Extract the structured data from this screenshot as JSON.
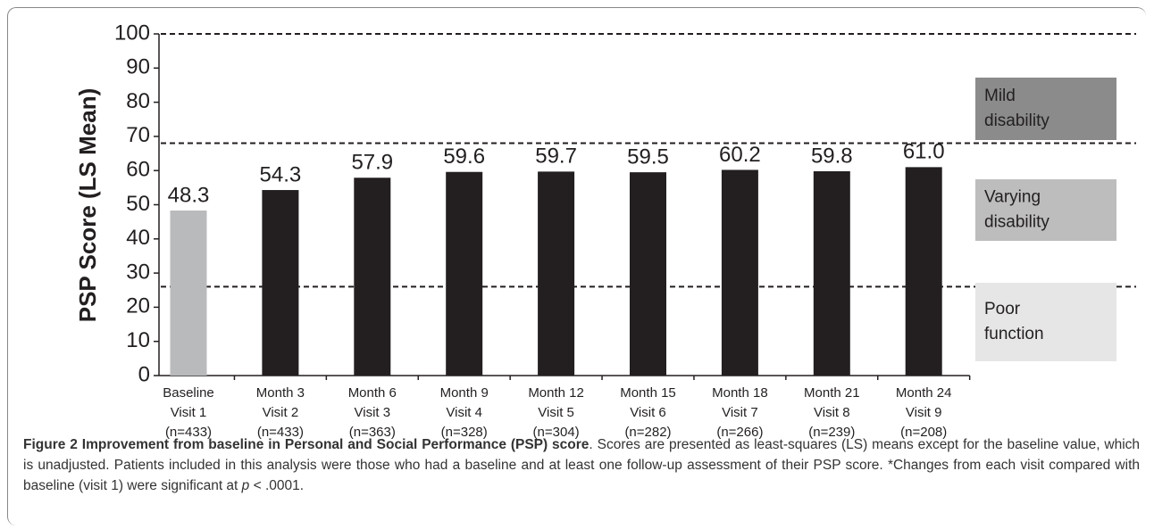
{
  "chart_data": {
    "type": "bar",
    "y_label": "PSP Score (LS Mean)",
    "categories": [
      [
        "Baseline",
        "Visit 1",
        "(n=433)"
      ],
      [
        "Month 3",
        "Visit 2",
        "(n=433)"
      ],
      [
        "Month 6",
        "Visit 3",
        "(n=363)"
      ],
      [
        "Month 9",
        "Visit 4",
        "(n=328)"
      ],
      [
        "Month 12",
        "Visit 5",
        "(n=304)"
      ],
      [
        "Month 15",
        "Visit 6",
        "(n=282)"
      ],
      [
        "Month 18",
        "Visit 7",
        "(n=266)"
      ],
      [
        "Month 21",
        "Visit 8",
        "(n=239)"
      ],
      [
        "Month 24",
        "Visit 9",
        "(n=208)"
      ]
    ],
    "values": [
      48.3,
      54.3,
      57.9,
      59.6,
      59.7,
      59.5,
      60.2,
      59.8,
      61.0
    ],
    "value_labels": [
      "48.3",
      "54.3",
      "57.9",
      "59.6",
      "59.7",
      "59.5",
      "60.2",
      "59.8",
      "61.0"
    ],
    "colors": [
      "#b9babc",
      "#231f20",
      "#231f20",
      "#231f20",
      "#231f20",
      "#231f20",
      "#231f20",
      "#231f20",
      "#231f20"
    ],
    "ylim": [
      0,
      100
    ],
    "yticks": [
      0,
      10,
      20,
      30,
      40,
      50,
      60,
      70,
      80,
      90,
      100
    ],
    "reference_lines": [
      100,
      68,
      26
    ],
    "annotations": [
      {
        "text": [
          "Mild",
          "disability"
        ],
        "color": "#8b8b8b"
      },
      {
        "text": [
          "Varying",
          "disability"
        ],
        "color": "#bdbdbd"
      },
      {
        "text": [
          "Poor",
          "function"
        ],
        "color": "#e6e6e6"
      }
    ]
  },
  "caption": {
    "label": "Figure 2",
    "title": "Improvement from baseline in Personal and Social Performance (PSP) score",
    "text": ". Scores are presented as least-squares (LS) means except for the baseline value, which is unadjusted. Patients included in this analysis were those who had a baseline and at least one follow-up assessment of their PSP score. *Changes from each visit compared with baseline (visit 1) were significant at ",
    "italic": "p",
    "end": " < .0001."
  }
}
